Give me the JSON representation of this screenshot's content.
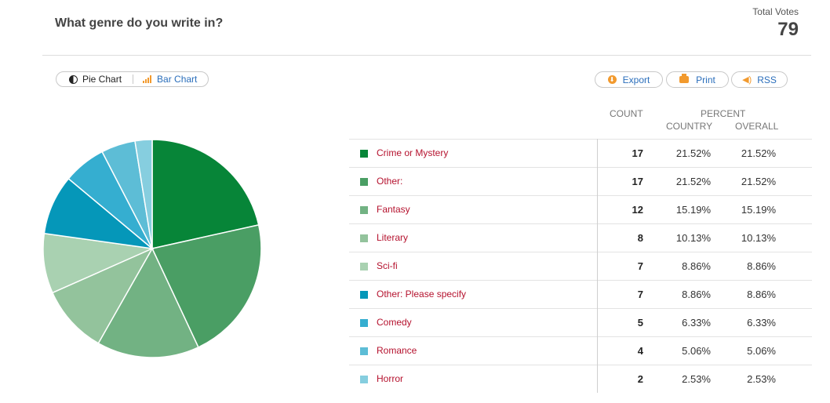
{
  "header": {
    "question": "What genre do you write in?",
    "total_votes_label": "Total Votes",
    "total_votes": "79"
  },
  "toolbar": {
    "pie_label": "Pie Chart",
    "bar_label": "Bar Chart",
    "export_label": "Export",
    "print_label": "Print",
    "rss_label": "RSS"
  },
  "table": {
    "count_header": "COUNT",
    "percent_header": "PERCENT",
    "country_header": "COUNTRY",
    "overall_header": "OVERALL"
  },
  "chart_data": {
    "type": "pie",
    "title": "",
    "categories": [
      "Crime or Mystery",
      "Other:",
      "Fantasy",
      "Literary",
      "Sci-fi",
      "Other: Please specify",
      "Comedy",
      "Romance",
      "Horror"
    ],
    "values": [
      17,
      17,
      12,
      8,
      7,
      7,
      5,
      4,
      2
    ],
    "country_percent": [
      "21.52%",
      "21.52%",
      "15.19%",
      "10.13%",
      "8.86%",
      "8.86%",
      "6.33%",
      "5.06%",
      "2.53%"
    ],
    "overall_percent": [
      "21.52%",
      "21.52%",
      "15.19%",
      "10.13%",
      "8.86%",
      "8.86%",
      "6.33%",
      "5.06%",
      "2.53%"
    ],
    "colors": [
      "#078538",
      "#4a9e64",
      "#72b283",
      "#93c39c",
      "#a9d1b1",
      "#0597b9",
      "#35aed0",
      "#5dbdd6",
      "#86cedf"
    ],
    "legend_position": "right"
  }
}
